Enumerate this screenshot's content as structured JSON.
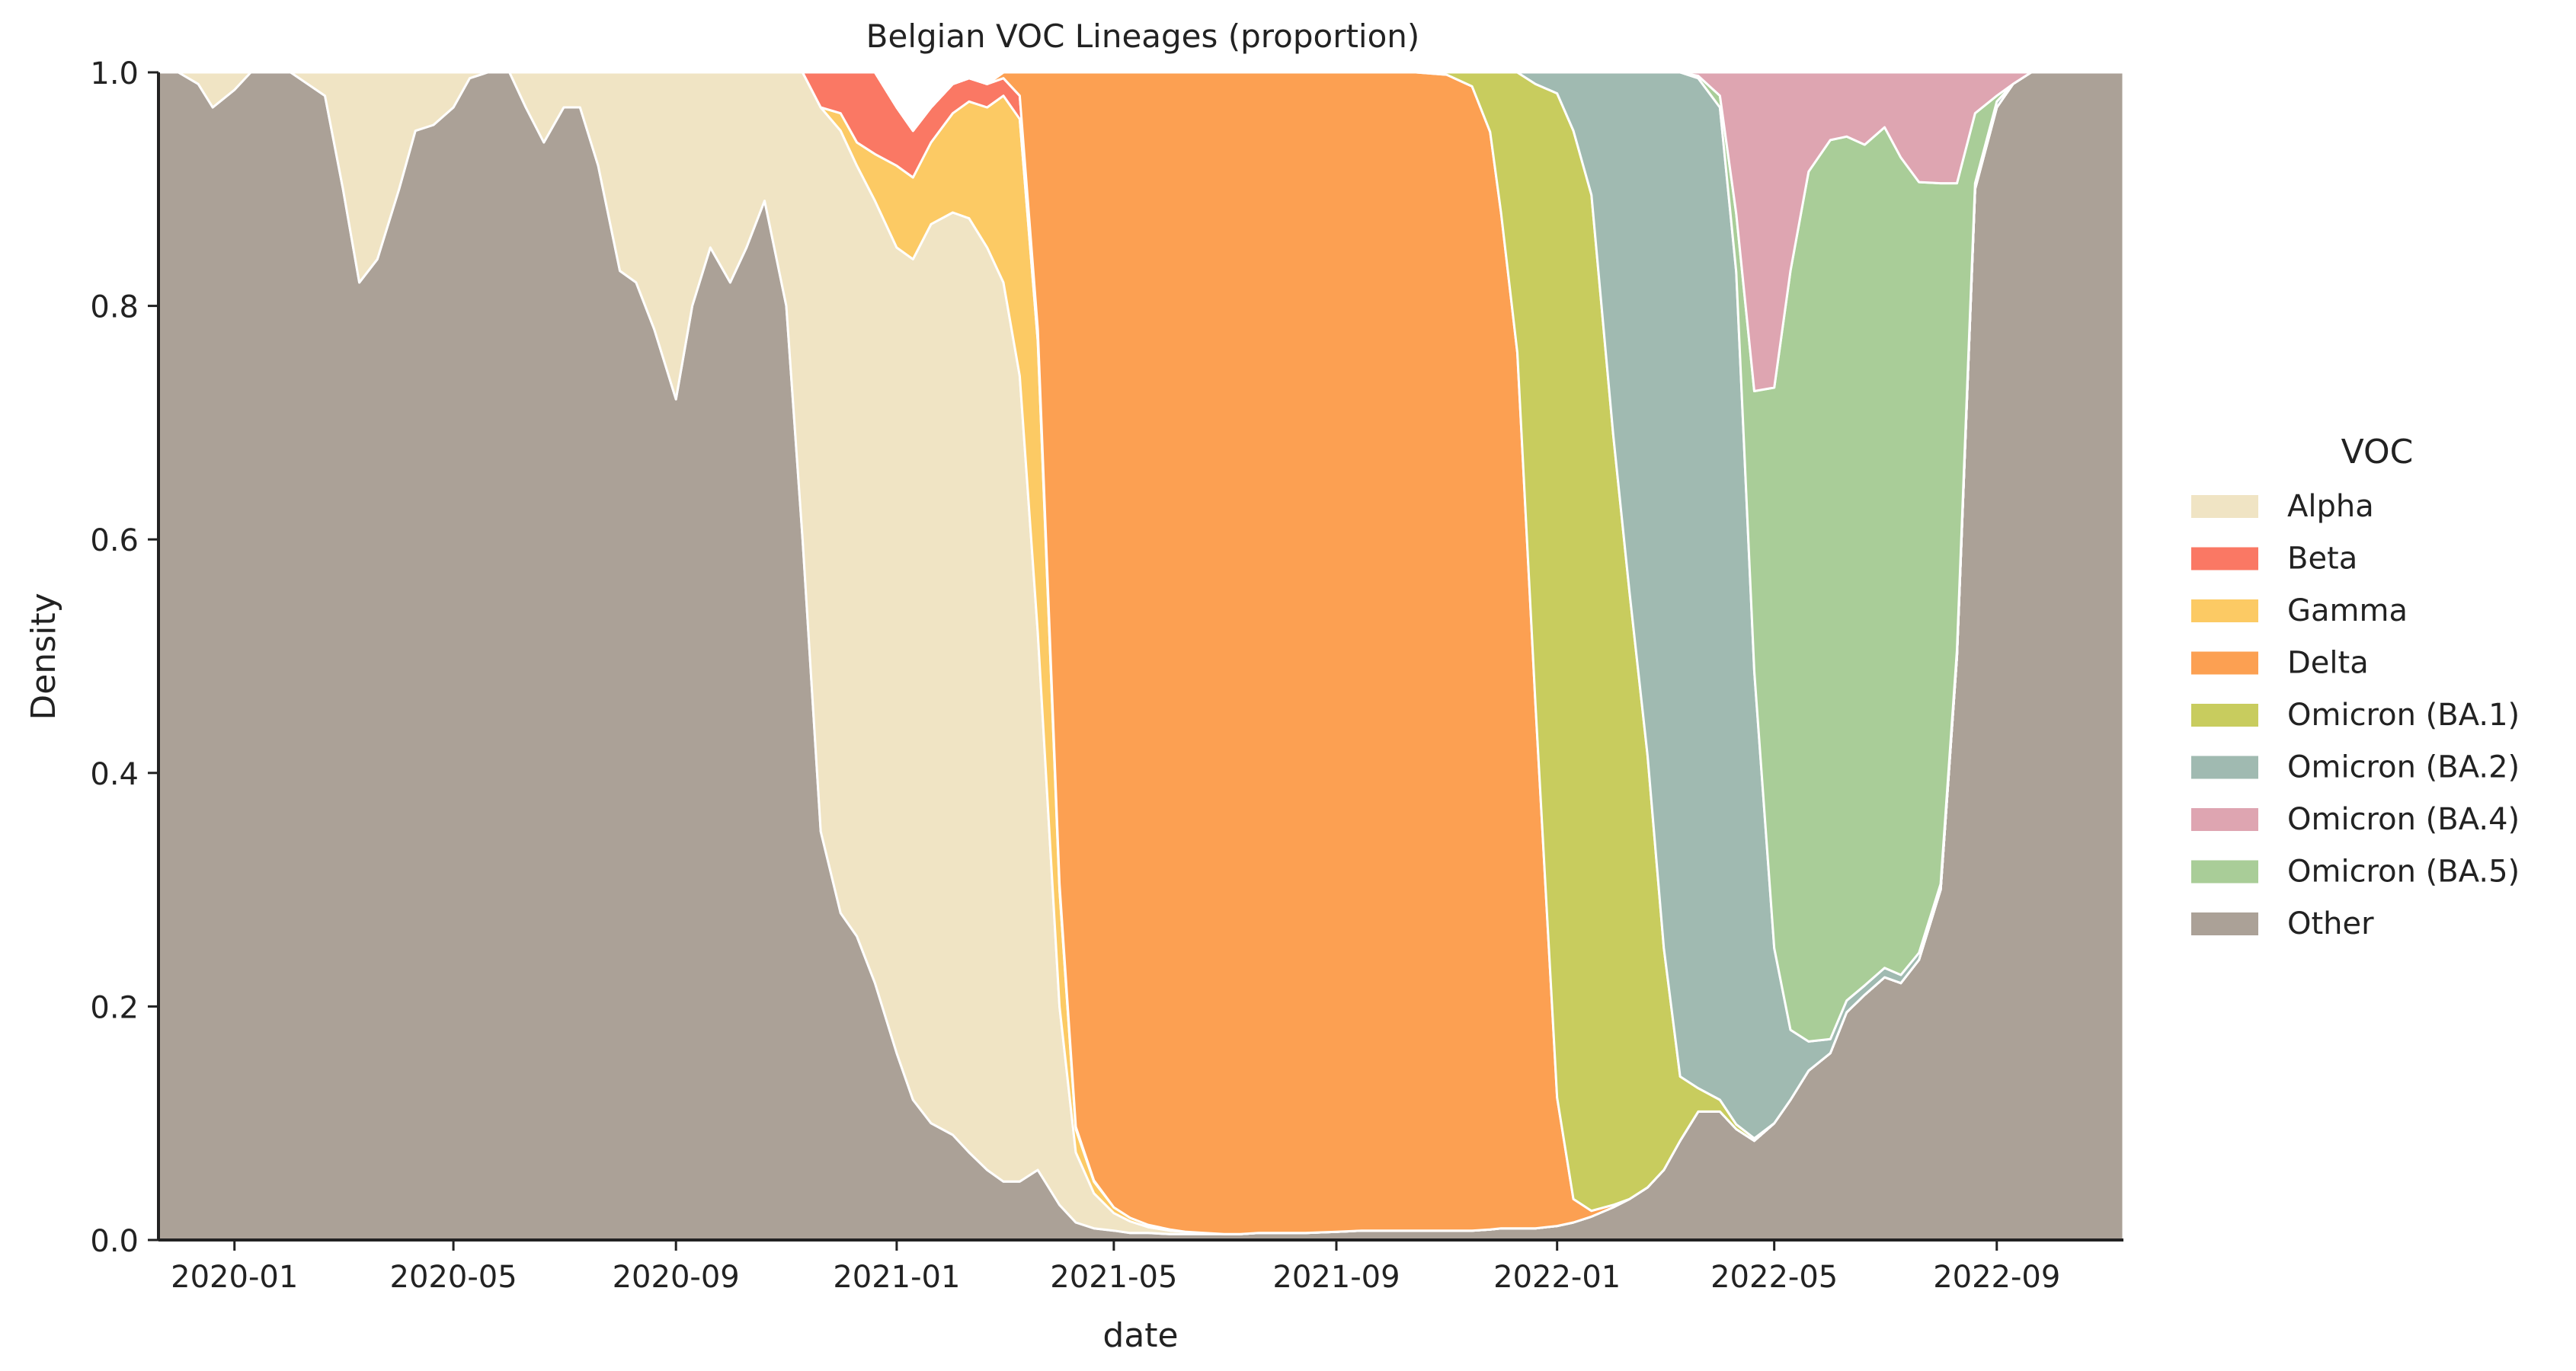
{
  "chart_data": {
    "type": "area",
    "stacked": "normalized",
    "title": "Belgian VOC Lineages (proportion)",
    "xlabel": "date",
    "ylabel": "Density",
    "x_axis": {
      "type": "date",
      "range": [
        "2019-11-20",
        "2022-11-10"
      ]
    },
    "y_axis": {
      "range": [
        0,
        1.0
      ]
    },
    "xticks": [
      {
        "date": "2020-01-01",
        "label": "2020-01"
      },
      {
        "date": "2020-05-01",
        "label": "2020-05"
      },
      {
        "date": "2020-09-01",
        "label": "2020-09"
      },
      {
        "date": "2021-01-01",
        "label": "2021-01"
      },
      {
        "date": "2021-05-01",
        "label": "2021-05"
      },
      {
        "date": "2021-09-01",
        "label": "2021-09"
      },
      {
        "date": "2022-01-01",
        "label": "2022-01"
      },
      {
        "date": "2022-05-01",
        "label": "2022-05"
      },
      {
        "date": "2022-09-01",
        "label": "2022-09"
      }
    ],
    "yticks": [
      {
        "value": 0.0,
        "label": "0.0"
      },
      {
        "value": 0.2,
        "label": "0.2"
      },
      {
        "value": 0.4,
        "label": "0.4"
      },
      {
        "value": 0.6,
        "label": "0.6"
      },
      {
        "value": 0.8,
        "label": "0.8"
      },
      {
        "value": 1.0,
        "label": "1.0"
      }
    ],
    "grid": false,
    "legend": {
      "title": "VOC",
      "position": "right"
    },
    "legend_order": [
      "Alpha",
      "Beta",
      "Gamma",
      "Delta",
      "Omicron (BA.1)",
      "Omicron (BA.2)",
      "Omicron (BA.4)",
      "Omicron (BA.5)",
      "Other"
    ],
    "stack_order": [
      "Other",
      "Alpha",
      "Gamma",
      "Beta",
      "Delta",
      "Omicron (BA.1)",
      "Omicron (BA.2)",
      "Omicron (BA.5)",
      "Omicron (BA.4)"
    ],
    "colors": {
      "Alpha": "#f0e4c4",
      "Beta": "#fa7864",
      "Gamma": "#fcca64",
      "Delta": "#fca052",
      "Omicron (BA.1)": "#c8cc5e",
      "Omicron (BA.2)": "#a0bab1",
      "Omicron (BA.4)": "#dea5b1",
      "Omicron (BA.5)": "#a9cd98",
      "Other": "#aba197"
    },
    "dates": [
      "2019-11-20",
      "2019-12-01",
      "2019-12-12",
      "2019-12-20",
      "2020-01-01",
      "2020-01-10",
      "2020-01-20",
      "2020-02-01",
      "2020-02-20",
      "2020-03-01",
      "2020-03-10",
      "2020-03-20",
      "2020-04-01",
      "2020-04-10",
      "2020-04-20",
      "2020-05-01",
      "2020-05-10",
      "2020-05-20",
      "2020-06-01",
      "2020-06-10",
      "2020-06-20",
      "2020-07-01",
      "2020-07-10",
      "2020-07-20",
      "2020-08-01",
      "2020-08-10",
      "2020-08-20",
      "2020-09-01",
      "2020-09-10",
      "2020-09-20",
      "2020-10-01",
      "2020-10-10",
      "2020-10-20",
      "2020-11-01",
      "2020-11-10",
      "2020-11-20",
      "2020-12-01",
      "2020-12-10",
      "2020-12-20",
      "2021-01-01",
      "2021-01-10",
      "2021-01-20",
      "2021-02-01",
      "2021-02-10",
      "2021-02-20",
      "2021-03-01",
      "2021-03-10",
      "2021-03-20",
      "2021-04-01",
      "2021-04-10",
      "2021-04-20",
      "2021-05-01",
      "2021-05-10",
      "2021-05-20",
      "2021-06-01",
      "2021-06-10",
      "2021-06-20",
      "2021-07-01",
      "2021-07-10",
      "2021-07-20",
      "2021-08-01",
      "2021-08-15",
      "2021-09-01",
      "2021-09-15",
      "2021-10-01",
      "2021-10-15",
      "2021-11-01",
      "2021-11-15",
      "2021-11-25",
      "2021-12-01",
      "2021-12-10",
      "2021-12-20",
      "2022-01-01",
      "2022-01-10",
      "2022-01-20",
      "2022-02-01",
      "2022-02-10",
      "2022-02-20",
      "2022-03-01",
      "2022-03-10",
      "2022-03-20",
      "2022-04-01",
      "2022-04-10",
      "2022-04-20",
      "2022-05-01",
      "2022-05-10",
      "2022-05-20",
      "2022-06-01",
      "2022-06-10",
      "2022-06-20",
      "2022-07-01",
      "2022-07-10",
      "2022-07-20",
      "2022-08-01",
      "2022-08-10",
      "2022-08-20",
      "2022-09-01",
      "2022-09-10",
      "2022-09-20",
      "2022-10-01",
      "2022-10-10",
      "2022-10-20",
      "2022-11-01",
      "2022-11-10"
    ],
    "series": [
      {
        "name": "Other",
        "values": [
          1.0,
          1.0,
          0.99,
          0.97,
          0.985,
          1.0,
          1.0,
          1.0,
          0.98,
          0.9,
          0.82,
          0.84,
          0.9,
          0.95,
          0.955,
          0.97,
          0.995,
          1.0,
          1.0,
          0.97,
          0.94,
          0.97,
          0.97,
          0.92,
          0.83,
          0.82,
          0.78,
          0.72,
          0.8,
          0.85,
          0.82,
          0.85,
          0.89,
          0.8,
          0.6,
          0.35,
          0.28,
          0.26,
          0.22,
          0.16,
          0.12,
          0.1,
          0.09,
          0.075,
          0.06,
          0.05,
          0.05,
          0.06,
          0.03,
          0.015,
          0.01,
          0.008,
          0.006,
          0.006,
          0.005,
          0.005,
          0.005,
          0.005,
          0.005,
          0.006,
          0.006,
          0.006,
          0.007,
          0.008,
          0.008,
          0.008,
          0.008,
          0.008,
          0.009,
          0.01,
          0.01,
          0.01,
          0.012,
          0.015,
          0.02,
          0.028,
          0.035,
          0.045,
          0.06,
          0.085,
          0.11,
          0.11,
          0.095,
          0.085,
          0.1,
          0.12,
          0.145,
          0.16,
          0.195,
          0.21,
          0.225,
          0.22,
          0.24,
          0.3,
          0.5,
          0.9,
          0.97,
          0.99,
          1.0,
          1.0,
          1.0,
          1.0,
          1.0,
          1.0
        ]
      },
      {
        "name": "Alpha",
        "values": [
          0.0,
          0.0,
          0.01,
          0.03,
          0.015,
          0.0,
          0.0,
          0.0,
          0.02,
          0.1,
          0.18,
          0.16,
          0.1,
          0.05,
          0.045,
          0.03,
          0.005,
          0.0,
          0.0,
          0.03,
          0.06,
          0.03,
          0.03,
          0.08,
          0.17,
          0.18,
          0.22,
          0.28,
          0.2,
          0.15,
          0.18,
          0.15,
          0.11,
          0.2,
          0.4,
          0.62,
          0.67,
          0.66,
          0.67,
          0.69,
          0.72,
          0.77,
          0.79,
          0.8,
          0.79,
          0.77,
          0.69,
          0.46,
          0.17,
          0.06,
          0.03,
          0.015,
          0.01,
          0.005,
          0.003,
          0.002,
          0.001,
          0.0,
          0.0,
          0.0,
          0.0,
          0.0,
          0.0,
          0.0,
          0.0,
          0.0,
          0.0,
          0.0,
          0.0,
          0.0,
          0.0,
          0.0,
          0.0,
          0.0,
          0.0,
          0.0,
          0.0,
          0.0,
          0.0,
          0.0,
          0.0,
          0.0,
          0.0,
          0.0,
          0.0,
          0.0,
          0.0,
          0.0,
          0.0,
          0.0,
          0.0,
          0.0,
          0.0,
          0.0,
          0.0,
          0.0,
          0.0,
          0.0,
          0.0,
          0.0,
          0.0,
          0.0,
          0.0,
          0.0
        ]
      },
      {
        "name": "Gamma",
        "values": [
          0.0,
          0.0,
          0.0,
          0.0,
          0.0,
          0.0,
          0.0,
          0.0,
          0.0,
          0.0,
          0.0,
          0.0,
          0.0,
          0.0,
          0.0,
          0.0,
          0.0,
          0.0,
          0.0,
          0.0,
          0.0,
          0.0,
          0.0,
          0.0,
          0.0,
          0.0,
          0.0,
          0.0,
          0.0,
          0.0,
          0.0,
          0.0,
          0.0,
          0.0,
          0.0,
          0.0,
          0.015,
          0.02,
          0.04,
          0.07,
          0.07,
          0.07,
          0.085,
          0.1,
          0.12,
          0.16,
          0.22,
          0.25,
          0.1,
          0.02,
          0.01,
          0.005,
          0.003,
          0.002,
          0.001,
          0.0,
          0.0,
          0.0,
          0.0,
          0.0,
          0.0,
          0.0,
          0.0,
          0.0,
          0.0,
          0.0,
          0.0,
          0.0,
          0.0,
          0.0,
          0.0,
          0.0,
          0.0,
          0.0,
          0.0,
          0.0,
          0.0,
          0.0,
          0.0,
          0.0,
          0.0,
          0.0,
          0.0,
          0.0,
          0.0,
          0.0,
          0.0,
          0.0,
          0.0,
          0.0,
          0.0,
          0.0,
          0.0,
          0.0,
          0.0,
          0.0,
          0.0,
          0.0,
          0.0,
          0.0,
          0.0,
          0.0,
          0.0,
          0.0
        ]
      },
      {
        "name": "Beta",
        "values": [
          0.0,
          0.0,
          0.0,
          0.0,
          0.0,
          0.0,
          0.0,
          0.0,
          0.0,
          0.0,
          0.0,
          0.0,
          0.0,
          0.0,
          0.0,
          0.0,
          0.0,
          0.0,
          0.0,
          0.0,
          0.0,
          0.0,
          0.0,
          0.0,
          0.0,
          0.0,
          0.0,
          0.0,
          0.0,
          0.0,
          0.0,
          0.0,
          0.0,
          0.0,
          0.0,
          0.03,
          0.065,
          0.07,
          0.07,
          0.05,
          0.04,
          0.03,
          0.025,
          0.02,
          0.02,
          0.015,
          0.02,
          0.01,
          0.005,
          0.002,
          0.001,
          0.0,
          0.0,
          0.0,
          0.0,
          0.0,
          0.0,
          0.0,
          0.0,
          0.0,
          0.0,
          0.0,
          0.0,
          0.0,
          0.0,
          0.0,
          0.0,
          0.0,
          0.0,
          0.0,
          0.0,
          0.0,
          0.0,
          0.0,
          0.0,
          0.0,
          0.0,
          0.0,
          0.0,
          0.0,
          0.0,
          0.0,
          0.0,
          0.0,
          0.0,
          0.0,
          0.0,
          0.0,
          0.0,
          0.0,
          0.0,
          0.0,
          0.0,
          0.0,
          0.0,
          0.0,
          0.0,
          0.0,
          0.0,
          0.0,
          0.0,
          0.0,
          0.0,
          0.0
        ]
      },
      {
        "name": "Delta",
        "values": [
          0.0,
          0.0,
          0.0,
          0.0,
          0.0,
          0.0,
          0.0,
          0.0,
          0.0,
          0.0,
          0.0,
          0.0,
          0.0,
          0.0,
          0.0,
          0.0,
          0.0,
          0.0,
          0.0,
          0.0,
          0.0,
          0.0,
          0.0,
          0.0,
          0.0,
          0.0,
          0.0,
          0.0,
          0.0,
          0.0,
          0.0,
          0.0,
          0.0,
          0.0,
          0.0,
          0.0,
          0.0,
          0.0,
          0.0,
          0.0,
          0.0,
          0.0,
          0.0,
          0.0,
          0.0,
          0.005,
          0.02,
          0.22,
          0.695,
          0.903,
          0.959,
          0.972,
          0.981,
          0.987,
          0.991,
          0.993,
          0.994,
          0.995,
          0.995,
          0.994,
          0.994,
          0.994,
          0.993,
          0.992,
          0.992,
          0.992,
          0.99,
          0.98,
          0.94,
          0.87,
          0.75,
          0.45,
          0.11,
          0.02,
          0.005,
          0.002,
          0.0,
          0.0,
          0.0,
          0.0,
          0.0,
          0.0,
          0.0,
          0.0,
          0.0,
          0.0,
          0.0,
          0.0,
          0.0,
          0.0,
          0.0,
          0.0,
          0.0,
          0.0,
          0.0,
          0.0,
          0.0,
          0.0,
          0.0,
          0.0,
          0.0,
          0.0,
          0.0,
          0.0
        ]
      },
      {
        "name": "Omicron (BA.1)",
        "values": [
          0.0,
          0.0,
          0.0,
          0.0,
          0.0,
          0.0,
          0.0,
          0.0,
          0.0,
          0.0,
          0.0,
          0.0,
          0.0,
          0.0,
          0.0,
          0.0,
          0.0,
          0.0,
          0.0,
          0.0,
          0.0,
          0.0,
          0.0,
          0.0,
          0.0,
          0.0,
          0.0,
          0.0,
          0.0,
          0.0,
          0.0,
          0.0,
          0.0,
          0.0,
          0.0,
          0.0,
          0.0,
          0.0,
          0.0,
          0.0,
          0.0,
          0.0,
          0.0,
          0.0,
          0.0,
          0.0,
          0.0,
          0.0,
          0.0,
          0.0,
          0.0,
          0.0,
          0.0,
          0.0,
          0.0,
          0.0,
          0.0,
          0.0,
          0.0,
          0.0,
          0.0,
          0.0,
          0.0,
          0.0,
          0.0,
          0.0,
          0.002,
          0.012,
          0.051,
          0.12,
          0.24,
          0.53,
          0.86,
          0.915,
          0.87,
          0.66,
          0.52,
          0.37,
          0.19,
          0.055,
          0.02,
          0.01,
          0.004,
          0.002,
          0.0,
          0.0,
          0.0,
          0.0,
          0.0,
          0.0,
          0.0,
          0.0,
          0.0,
          0.0,
          0.0,
          0.0,
          0.0,
          0.0,
          0.0,
          0.0,
          0.0,
          0.0,
          0.0,
          0.0
        ]
      },
      {
        "name": "Omicron (BA.2)",
        "values": [
          0.0,
          0.0,
          0.0,
          0.0,
          0.0,
          0.0,
          0.0,
          0.0,
          0.0,
          0.0,
          0.0,
          0.0,
          0.0,
          0.0,
          0.0,
          0.0,
          0.0,
          0.0,
          0.0,
          0.0,
          0.0,
          0.0,
          0.0,
          0.0,
          0.0,
          0.0,
          0.0,
          0.0,
          0.0,
          0.0,
          0.0,
          0.0,
          0.0,
          0.0,
          0.0,
          0.0,
          0.0,
          0.0,
          0.0,
          0.0,
          0.0,
          0.0,
          0.0,
          0.0,
          0.0,
          0.0,
          0.0,
          0.0,
          0.0,
          0.0,
          0.0,
          0.0,
          0.0,
          0.0,
          0.0,
          0.0,
          0.0,
          0.0,
          0.0,
          0.0,
          0.0,
          0.0,
          0.0,
          0.0,
          0.0,
          0.0,
          0.0,
          0.0,
          0.0,
          0.0,
          0.0,
          0.01,
          0.018,
          0.05,
          0.105,
          0.31,
          0.445,
          0.585,
          0.75,
          0.86,
          0.865,
          0.85,
          0.73,
          0.4,
          0.15,
          0.06,
          0.025,
          0.012,
          0.01,
          0.008,
          0.008,
          0.007,
          0.006,
          0.005,
          0.005,
          0.005,
          0.005,
          0.0,
          0.0,
          0.0,
          0.0,
          0.0,
          0.0,
          0.0
        ]
      },
      {
        "name": "Omicron (BA.5)",
        "values": [
          0.0,
          0.0,
          0.0,
          0.0,
          0.0,
          0.0,
          0.0,
          0.0,
          0.0,
          0.0,
          0.0,
          0.0,
          0.0,
          0.0,
          0.0,
          0.0,
          0.0,
          0.0,
          0.0,
          0.0,
          0.0,
          0.0,
          0.0,
          0.0,
          0.0,
          0.0,
          0.0,
          0.0,
          0.0,
          0.0,
          0.0,
          0.0,
          0.0,
          0.0,
          0.0,
          0.0,
          0.0,
          0.0,
          0.0,
          0.0,
          0.0,
          0.0,
          0.0,
          0.0,
          0.0,
          0.0,
          0.0,
          0.0,
          0.0,
          0.0,
          0.0,
          0.0,
          0.0,
          0.0,
          0.0,
          0.0,
          0.0,
          0.0,
          0.0,
          0.0,
          0.0,
          0.0,
          0.0,
          0.0,
          0.0,
          0.0,
          0.0,
          0.0,
          0.0,
          0.0,
          0.0,
          0.0,
          0.0,
          0.0,
          0.0,
          0.0,
          0.0,
          0.0,
          0.0,
          0.0,
          0.002,
          0.01,
          0.05,
          0.24,
          0.48,
          0.65,
          0.745,
          0.77,
          0.74,
          0.72,
          0.72,
          0.7,
          0.66,
          0.6,
          0.4,
          0.06,
          0.005,
          0.0,
          0.0,
          0.0,
          0.0,
          0.0,
          0.0,
          0.0
        ]
      },
      {
        "name": "Omicron (BA.4)",
        "values": [
          0.0,
          0.0,
          0.0,
          0.0,
          0.0,
          0.0,
          0.0,
          0.0,
          0.0,
          0.0,
          0.0,
          0.0,
          0.0,
          0.0,
          0.0,
          0.0,
          0.0,
          0.0,
          0.0,
          0.0,
          0.0,
          0.0,
          0.0,
          0.0,
          0.0,
          0.0,
          0.0,
          0.0,
          0.0,
          0.0,
          0.0,
          0.0,
          0.0,
          0.0,
          0.0,
          0.0,
          0.0,
          0.0,
          0.0,
          0.0,
          0.0,
          0.0,
          0.0,
          0.0,
          0.0,
          0.0,
          0.0,
          0.0,
          0.0,
          0.0,
          0.0,
          0.0,
          0.0,
          0.0,
          0.0,
          0.0,
          0.0,
          0.0,
          0.0,
          0.0,
          0.0,
          0.0,
          0.0,
          0.0,
          0.0,
          0.0,
          0.0,
          0.0,
          0.0,
          0.0,
          0.0,
          0.0,
          0.0,
          0.0,
          0.0,
          0.0,
          0.0,
          0.0,
          0.0,
          0.0,
          0.003,
          0.02,
          0.121,
          0.273,
          0.27,
          0.17,
          0.085,
          0.058,
          0.055,
          0.062,
          0.047,
          0.073,
          0.094,
          0.095,
          0.095,
          0.04,
          0.02,
          0.01,
          0.0,
          0.0,
          0.0,
          0.0,
          0.0,
          0.0
        ]
      }
    ]
  }
}
